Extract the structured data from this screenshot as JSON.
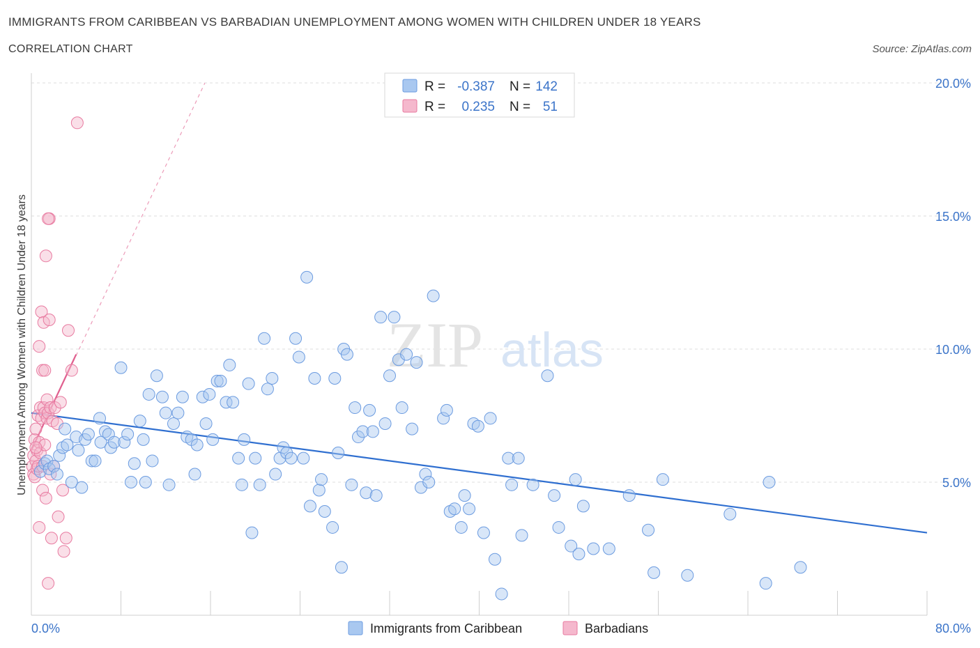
{
  "title": "IMMIGRANTS FROM CARIBBEAN VS BARBADIAN UNEMPLOYMENT AMONG WOMEN WITH CHILDREN UNDER 18 YEARS",
  "subtitle": "CORRELATION CHART",
  "source": "Source: ZipAtlas.com",
  "watermark": {
    "zip": "ZIP",
    "atlas": "atlas"
  },
  "colors": {
    "blue": "#6b9be0",
    "blue_fill": "#a9c8f0",
    "blue_line": "#2f6fd0",
    "pink": "#e87aa0",
    "pink_fill": "#f5b8cd",
    "pink_line": "#e0608f",
    "axis_text": "#3b74c9"
  },
  "legend": {
    "r_label": "R =",
    "n_label": "N =",
    "rows": [
      {
        "r": "-0.387",
        "n": "142",
        "color": "#a9c8f0"
      },
      {
        "r": "0.235",
        "n": "51",
        "color": "#f5b8cd"
      }
    ]
  },
  "bottom_legend": [
    "Immigrants from Caribbean",
    "Barbadians"
  ],
  "chart_data": {
    "type": "scatter",
    "title": "IMMIGRANTS FROM CARIBBEAN VS BARBADIAN UNEMPLOYMENT AMONG WOMEN WITH CHILDREN UNDER 18 YEARS",
    "ylabel": "Unemployment Among Women with Children Under 18 years",
    "xlabel": "",
    "xlim": [
      0,
      80
    ],
    "ylim": [
      0,
      20
    ],
    "x_tick_labels": [
      "0.0%",
      "80.0%"
    ],
    "y_tick_labels": [
      "5.0%",
      "10.0%",
      "15.0%",
      "20.0%"
    ],
    "y_ticks": [
      5,
      10,
      15,
      20
    ],
    "legend_position": "top-center",
    "grid": true,
    "series": [
      {
        "name": "Immigrants from Caribbean",
        "trend": {
          "x": [
            0,
            80
          ],
          "y": [
            7.6,
            3.1
          ]
        },
        "points": [
          [
            0.8,
            5.4
          ],
          [
            1.2,
            5.7
          ],
          [
            1.4,
            5.8
          ],
          [
            1.6,
            5.5
          ],
          [
            2.0,
            5.6
          ],
          [
            2.3,
            5.3
          ],
          [
            2.5,
            6.0
          ],
          [
            2.8,
            6.3
          ],
          [
            3.0,
            7.0
          ],
          [
            3.2,
            6.4
          ],
          [
            3.6,
            5.0
          ],
          [
            4.0,
            6.7
          ],
          [
            4.2,
            6.2
          ],
          [
            4.5,
            4.8
          ],
          [
            4.8,
            6.6
          ],
          [
            5.1,
            6.8
          ],
          [
            5.4,
            5.8
          ],
          [
            5.7,
            5.8
          ],
          [
            6.1,
            7.4
          ],
          [
            6.2,
            6.5
          ],
          [
            6.6,
            6.9
          ],
          [
            6.9,
            6.8
          ],
          [
            7.1,
            6.3
          ],
          [
            7.4,
            6.5
          ],
          [
            8.0,
            9.3
          ],
          [
            8.3,
            6.5
          ],
          [
            8.6,
            6.8
          ],
          [
            8.9,
            5.0
          ],
          [
            9.2,
            5.7
          ],
          [
            9.7,
            7.3
          ],
          [
            10.0,
            6.6
          ],
          [
            10.2,
            5.0
          ],
          [
            10.5,
            8.3
          ],
          [
            10.8,
            5.8
          ],
          [
            11.2,
            9.0
          ],
          [
            11.7,
            8.2
          ],
          [
            12.0,
            7.6
          ],
          [
            12.3,
            4.9
          ],
          [
            12.7,
            7.2
          ],
          [
            13.1,
            7.6
          ],
          [
            13.5,
            8.2
          ],
          [
            13.9,
            6.7
          ],
          [
            14.3,
            6.6
          ],
          [
            14.6,
            5.3
          ],
          [
            14.8,
            6.4
          ],
          [
            15.3,
            8.2
          ],
          [
            15.6,
            7.2
          ],
          [
            15.9,
            8.3
          ],
          [
            16.2,
            6.6
          ],
          [
            16.6,
            8.8
          ],
          [
            16.9,
            8.8
          ],
          [
            17.4,
            8.0
          ],
          [
            17.7,
            9.4
          ],
          [
            18.0,
            8.0
          ],
          [
            18.5,
            5.9
          ],
          [
            18.8,
            4.9
          ],
          [
            19.0,
            6.6
          ],
          [
            19.4,
            8.7
          ],
          [
            19.7,
            3.1
          ],
          [
            20.0,
            5.9
          ],
          [
            20.4,
            4.9
          ],
          [
            20.8,
            10.4
          ],
          [
            21.1,
            8.5
          ],
          [
            21.5,
            8.9
          ],
          [
            21.8,
            5.3
          ],
          [
            22.2,
            5.9
          ],
          [
            22.5,
            6.3
          ],
          [
            22.8,
            6.1
          ],
          [
            23.2,
            5.9
          ],
          [
            23.6,
            10.4
          ],
          [
            23.9,
            9.7
          ],
          [
            24.3,
            5.9
          ],
          [
            24.6,
            12.7
          ],
          [
            24.9,
            4.1
          ],
          [
            25.3,
            8.9
          ],
          [
            25.7,
            4.7
          ],
          [
            25.9,
            5.1
          ],
          [
            26.2,
            3.9
          ],
          [
            26.9,
            3.3
          ],
          [
            27.1,
            8.9
          ],
          [
            27.4,
            6.1
          ],
          [
            27.7,
            1.8
          ],
          [
            27.9,
            10.0
          ],
          [
            28.2,
            9.8
          ],
          [
            28.6,
            4.9
          ],
          [
            28.9,
            7.8
          ],
          [
            29.2,
            6.7
          ],
          [
            29.6,
            6.9
          ],
          [
            29.9,
            4.6
          ],
          [
            30.2,
            7.7
          ],
          [
            30.5,
            6.9
          ],
          [
            30.8,
            4.5
          ],
          [
            31.2,
            11.2
          ],
          [
            31.6,
            7.2
          ],
          [
            32.0,
            9.0
          ],
          [
            32.4,
            11.2
          ],
          [
            32.8,
            9.6
          ],
          [
            33.1,
            7.8
          ],
          [
            33.5,
            9.8
          ],
          [
            34.0,
            7.0
          ],
          [
            34.4,
            9.5
          ],
          [
            34.8,
            4.8
          ],
          [
            35.2,
            5.3
          ],
          [
            35.5,
            5.0
          ],
          [
            35.9,
            12.0
          ],
          [
            36.8,
            7.4
          ],
          [
            37.1,
            7.7
          ],
          [
            37.4,
            3.9
          ],
          [
            37.8,
            4.0
          ],
          [
            38.4,
            3.3
          ],
          [
            38.7,
            4.5
          ],
          [
            39.1,
            4.0
          ],
          [
            39.5,
            7.2
          ],
          [
            39.9,
            7.1
          ],
          [
            40.4,
            3.1
          ],
          [
            41.0,
            7.4
          ],
          [
            41.4,
            2.1
          ],
          [
            42.0,
            0.8
          ],
          [
            42.6,
            5.9
          ],
          [
            42.9,
            4.9
          ],
          [
            43.5,
            5.9
          ],
          [
            43.8,
            3.0
          ],
          [
            44.8,
            4.9
          ],
          [
            46.1,
            9.0
          ],
          [
            46.7,
            4.5
          ],
          [
            47.1,
            3.3
          ],
          [
            48.2,
            2.6
          ],
          [
            48.6,
            5.1
          ],
          [
            48.9,
            2.3
          ],
          [
            49.3,
            4.1
          ],
          [
            50.2,
            2.5
          ],
          [
            51.6,
            2.5
          ],
          [
            53.4,
            4.5
          ],
          [
            55.1,
            3.2
          ],
          [
            55.6,
            1.6
          ],
          [
            56.4,
            5.1
          ],
          [
            58.6,
            1.5
          ],
          [
            62.4,
            3.8
          ],
          [
            65.6,
            1.2
          ],
          [
            65.9,
            5.0
          ],
          [
            68.7,
            1.8
          ]
        ]
      },
      {
        "name": "Barbadians",
        "trend": {
          "x": [
            0,
            4
          ],
          "y": [
            6.2,
            9.8
          ]
        },
        "trend_extended": {
          "x": [
            0,
            15.5
          ],
          "y": [
            6.2,
            20.0
          ]
        },
        "points": [
          [
            0.1,
            5.6
          ],
          [
            0.2,
            5.3
          ],
          [
            0.2,
            6.0
          ],
          [
            0.3,
            6.6
          ],
          [
            0.3,
            5.2
          ],
          [
            0.4,
            7.0
          ],
          [
            0.4,
            5.8
          ],
          [
            0.5,
            6.2
          ],
          [
            0.5,
            5.5
          ],
          [
            0.6,
            7.5
          ],
          [
            0.6,
            5.6
          ],
          [
            0.7,
            10.1
          ],
          [
            0.7,
            6.5
          ],
          [
            0.7,
            3.3
          ],
          [
            0.8,
            7.8
          ],
          [
            0.8,
            6.1
          ],
          [
            0.9,
            11.4
          ],
          [
            0.9,
            7.4
          ],
          [
            1.0,
            9.2
          ],
          [
            1.0,
            5.6
          ],
          [
            1.0,
            4.7
          ],
          [
            1.1,
            11.0
          ],
          [
            1.1,
            7.8
          ],
          [
            1.2,
            9.2
          ],
          [
            1.2,
            6.4
          ],
          [
            1.2,
            7.6
          ],
          [
            1.3,
            13.5
          ],
          [
            1.3,
            4.4
          ],
          [
            1.4,
            8.1
          ],
          [
            1.4,
            7.4
          ],
          [
            1.5,
            1.2
          ],
          [
            1.5,
            7.6
          ],
          [
            1.6,
            14.9
          ],
          [
            1.6,
            11.1
          ],
          [
            1.7,
            5.3
          ],
          [
            1.7,
            7.8
          ],
          [
            1.8,
            2.9
          ],
          [
            1.9,
            7.3
          ],
          [
            2.0,
            5.6
          ],
          [
            2.1,
            7.8
          ],
          [
            2.3,
            7.2
          ],
          [
            2.4,
            3.7
          ],
          [
            2.6,
            8.0
          ],
          [
            2.8,
            4.7
          ],
          [
            2.9,
            2.4
          ],
          [
            3.1,
            2.9
          ],
          [
            3.3,
            10.7
          ],
          [
            3.6,
            9.2
          ],
          [
            4.1,
            18.5
          ],
          [
            1.5,
            14.9
          ],
          [
            0.4,
            6.3
          ]
        ]
      }
    ]
  }
}
